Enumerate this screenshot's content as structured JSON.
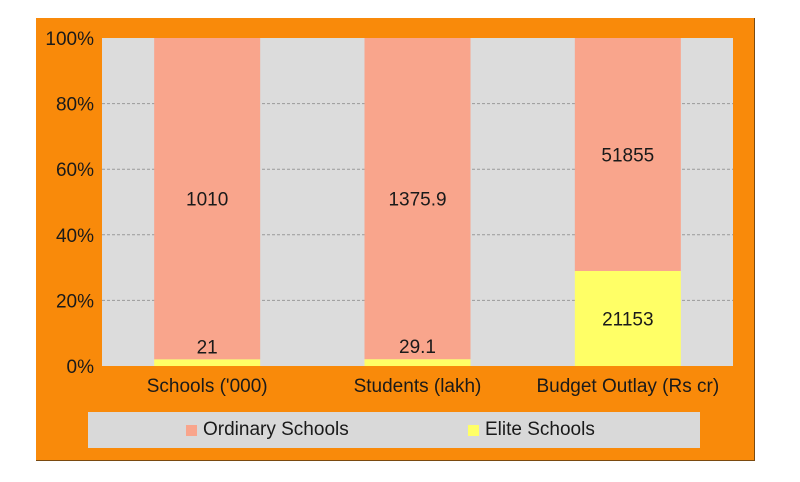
{
  "chart_data": {
    "type": "bar",
    "stacked": "percent",
    "categories": [
      "Schools ('000)",
      "Students (lakh)",
      "Budget Outlay (Rs cr)"
    ],
    "series": [
      {
        "name": "Elite Schools",
        "values": [
          21,
          29.1,
          21153
        ],
        "labels": [
          "21",
          "29.1",
          "21153"
        ],
        "color": "#ffff66"
      },
      {
        "name": "Ordinary Schools",
        "values": [
          1010,
          1375.9,
          51855
        ],
        "labels": [
          "1010",
          "1375.9",
          "51855"
        ],
        "color": "#f9a58c"
      }
    ],
    "y_ticks": [
      "0%",
      "20%",
      "40%",
      "60%",
      "80%",
      "100%"
    ],
    "ylim": [
      0,
      100
    ],
    "grid": true,
    "legend_position": "bottom"
  },
  "colors": {
    "frame": "#f98a0a",
    "plot_area": "#dcdcdc",
    "legend_bg": "#d9d9d9",
    "ordinary": "#f9a58c",
    "elite": "#ffff66"
  }
}
